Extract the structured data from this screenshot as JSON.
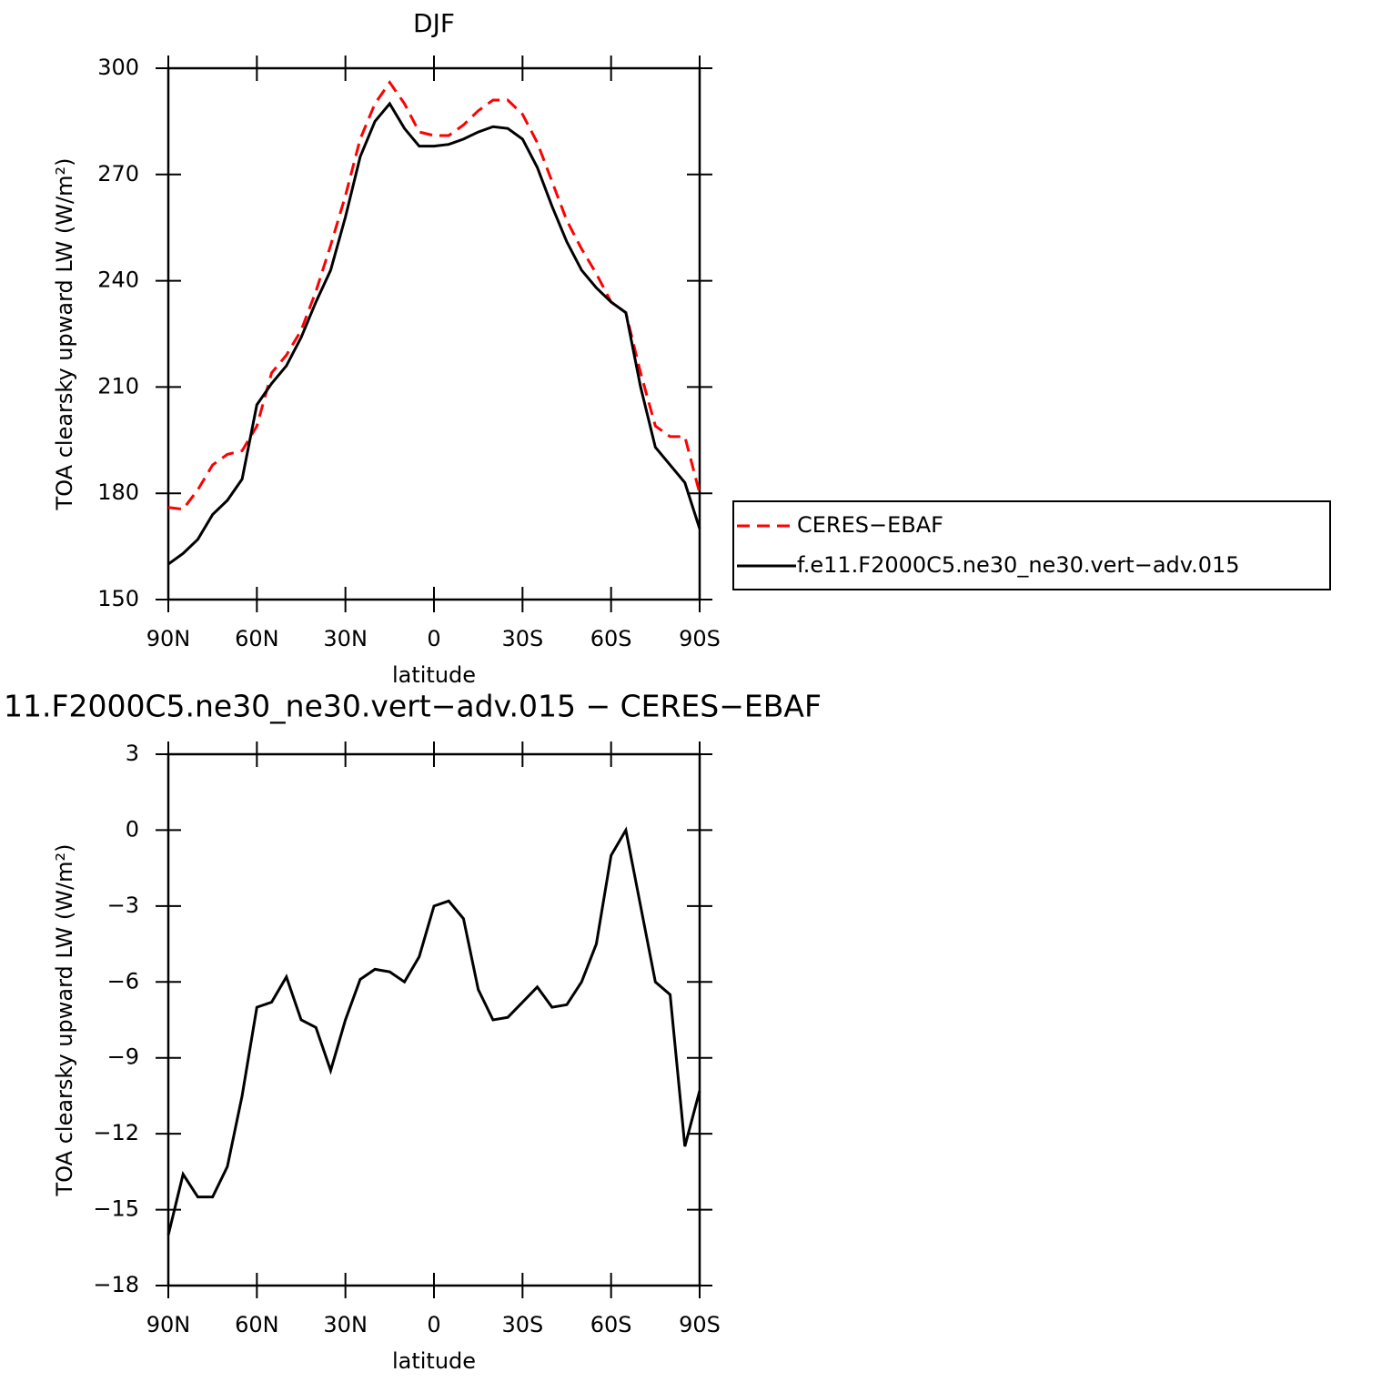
{
  "chart_data": [
    {
      "type": "line",
      "title": "DJF",
      "xlabel": "latitude",
      "ylabel": "TOA clearsky upward LW (W/m²)",
      "x": [
        90,
        85,
        80,
        75,
        70,
        65,
        60,
        55,
        50,
        45,
        40,
        35,
        30,
        25,
        20,
        15,
        10,
        5,
        0,
        -5,
        -10,
        -15,
        -20,
        -25,
        -30,
        -35,
        -40,
        -45,
        -50,
        -55,
        -60,
        -65,
        -70,
        -75,
        -80,
        -85,
        -90
      ],
      "series": [
        {
          "name": "CERES−EBAF",
          "color": "#ff0000",
          "dashed": true,
          "values": [
            176,
            175.5,
            181,
            188,
            191,
            192,
            199,
            214,
            219,
            226,
            237,
            250,
            264,
            280,
            290,
            296,
            290,
            282,
            281,
            281,
            284,
            288,
            291,
            291,
            287,
            279,
            268,
            257,
            249,
            242,
            234,
            231,
            214,
            199,
            196,
            196,
            180
          ]
        },
        {
          "name": "f.e11.F2000C5.ne30_ne30.vert−adv.015",
          "color": "#000000",
          "dashed": false,
          "values": [
            160,
            163,
            167,
            174,
            178,
            184,
            205,
            211,
            216,
            224,
            234,
            243,
            258,
            275,
            285,
            290,
            283,
            278,
            278,
            278.5,
            280,
            282,
            283.5,
            283,
            280,
            272,
            261,
            251,
            243,
            238,
            234,
            231,
            210,
            193,
            188,
            183,
            170
          ]
        }
      ],
      "xlim": [
        90,
        -90
      ],
      "xticks": [
        {
          "value": 90,
          "label": "90N"
        },
        {
          "value": 60,
          "label": "60N"
        },
        {
          "value": 30,
          "label": "30N"
        },
        0,
        {
          "value": -30,
          "label": "30S"
        },
        {
          "value": -60,
          "label": "60S"
        },
        {
          "value": -90,
          "label": "90S"
        }
      ],
      "ylim": [
        150,
        300
      ],
      "yticks": [
        150,
        180,
        210,
        240,
        270,
        300
      ],
      "legend": "right"
    },
    {
      "type": "line",
      "title": "11.F2000C5.ne30_ne30.vert−adv.015 − CERES−EBAF",
      "xlabel": "latitude",
      "ylabel": "TOA clearsky upward LW (W/m²)",
      "x": [
        90,
        85,
        80,
        75,
        70,
        65,
        60,
        55,
        50,
        45,
        40,
        35,
        30,
        25,
        20,
        15,
        10,
        5,
        0,
        -5,
        -10,
        -15,
        -20,
        -25,
        -30,
        -35,
        -40,
        -45,
        -50,
        -55,
        -60,
        -65,
        -70,
        -75,
        -80,
        -85,
        -90
      ],
      "series": [
        {
          "color": "#000000",
          "dashed": false,
          "values": [
            -16,
            -13.6,
            -14.5,
            -14.5,
            -13.3,
            -10.5,
            -7,
            -6.8,
            -5.8,
            -7.5,
            -7.8,
            -9.5,
            -7.5,
            -5.9,
            -5.5,
            -5.6,
            -6,
            -5,
            -3,
            -2.8,
            -3.5,
            -6.3,
            -7.5,
            -7.4,
            -6.8,
            -6.2,
            -7,
            -6.9,
            -6,
            -4.5,
            -1,
            0,
            -3,
            -6,
            -6.5,
            -12.5,
            -10.3
          ]
        }
      ],
      "xlim": [
        90,
        -90
      ],
      "xticks": [
        {
          "value": 90,
          "label": "90N"
        },
        {
          "value": 60,
          "label": "60N"
        },
        {
          "value": 30,
          "label": "30N"
        },
        0,
        {
          "value": -30,
          "label": "30S"
        },
        {
          "value": -60,
          "label": "60S"
        },
        {
          "value": -90,
          "label": "90S"
        }
      ],
      "ylim": [
        -18,
        3
      ],
      "yticks": [
        {
          "value": -18,
          "label": "−18"
        },
        {
          "value": -15,
          "label": "−15"
        },
        {
          "value": -12,
          "label": "−12"
        },
        {
          "value": -9,
          "label": "−9"
        },
        {
          "value": -6,
          "label": "−6"
        },
        {
          "value": -3,
          "label": "−3"
        },
        0,
        3
      ]
    }
  ]
}
